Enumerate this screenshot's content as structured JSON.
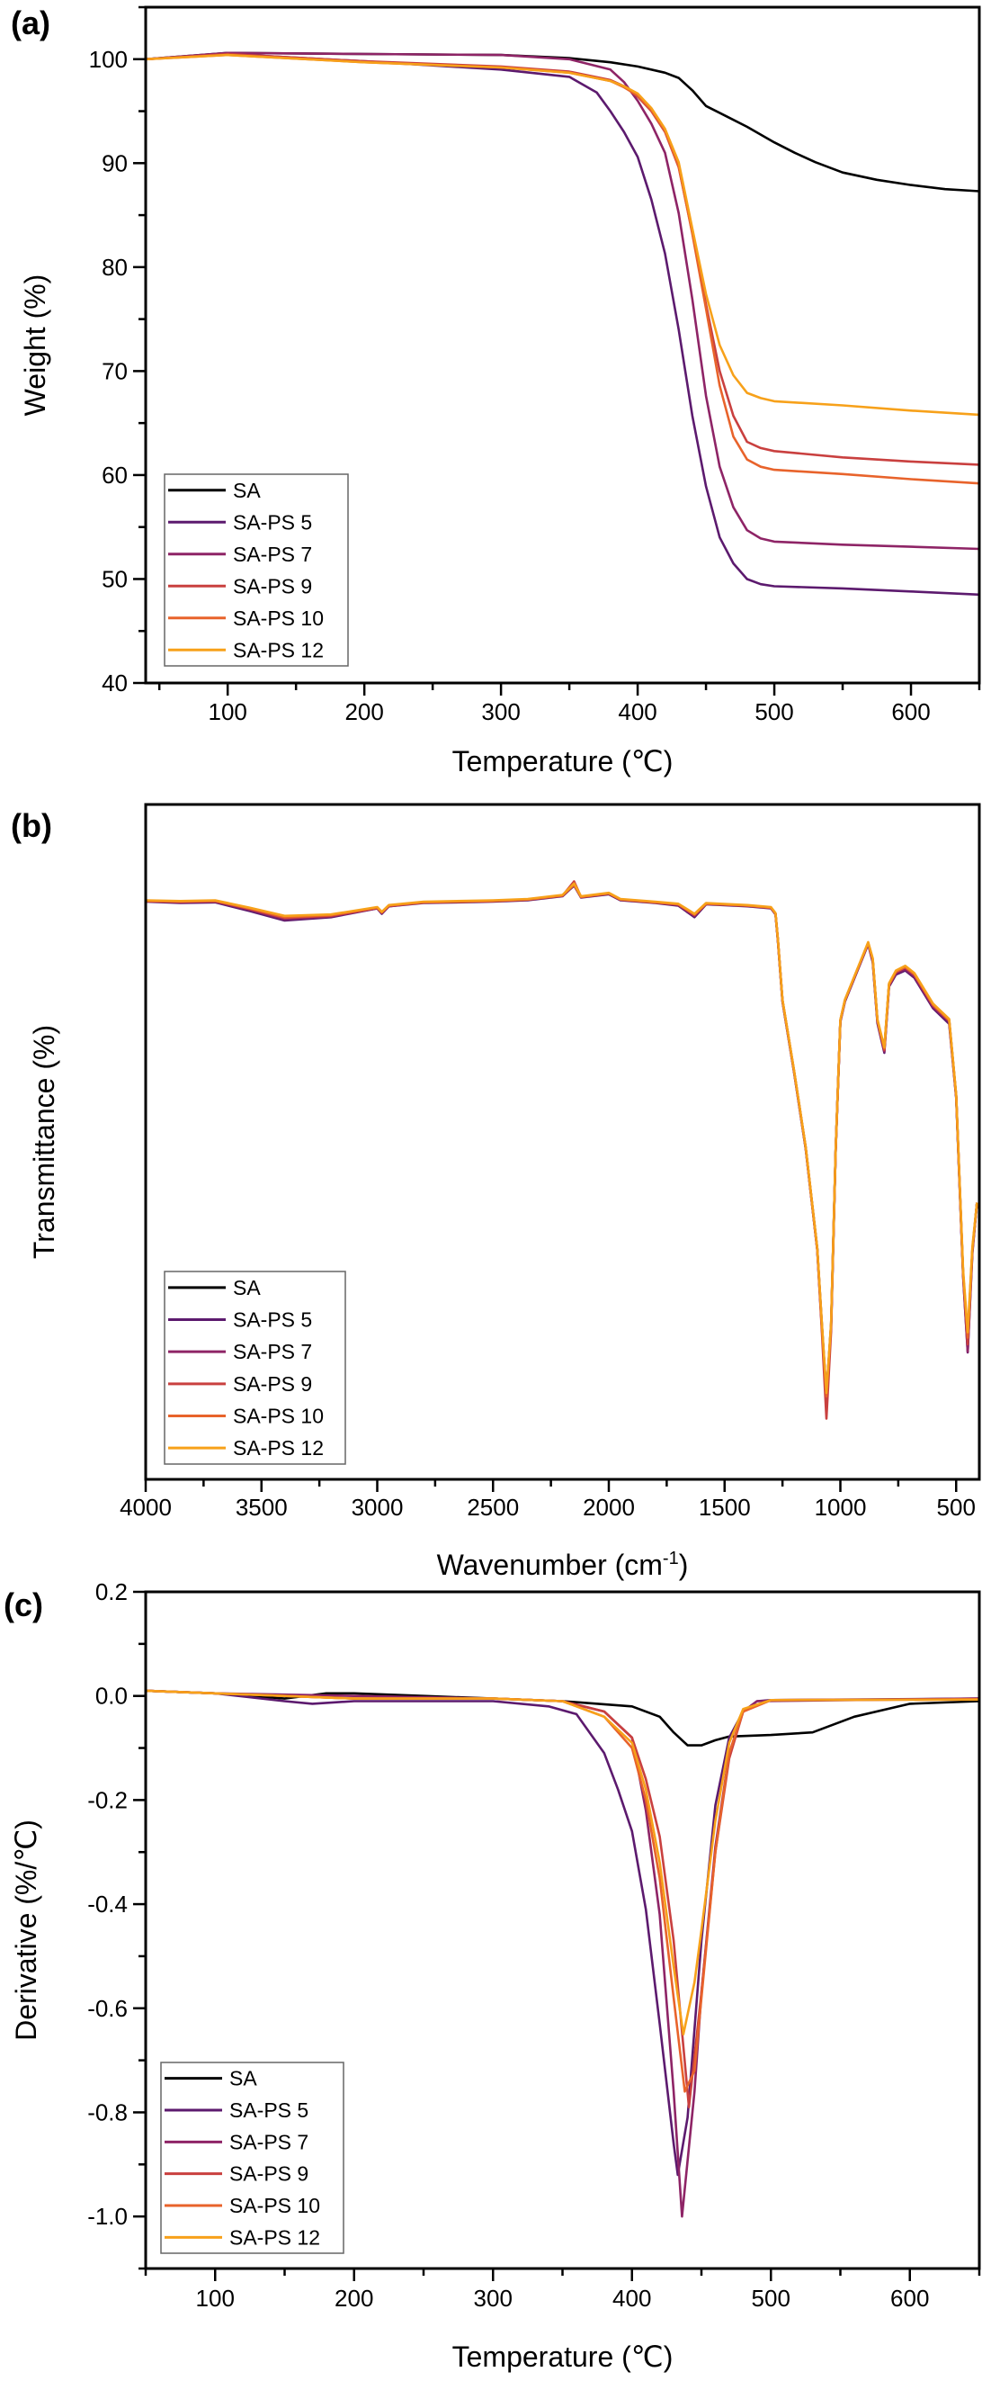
{
  "colors": {
    "SA": "#000000",
    "SA-PS 5": "#5c1a6e",
    "SA-PS 7": "#8e2466",
    "SA-PS 9": "#c9403f",
    "SA-PS 10": "#e8632b",
    "SA-PS 12": "#f7a11a"
  },
  "chart_data": [
    {
      "panel_label": "(a)",
      "type": "line",
      "title": "",
      "xlabel": "Temperature (℃)",
      "ylabel": "Weight (%)",
      "xlim": [
        40,
        650
      ],
      "ylim": [
        40,
        105
      ],
      "xticks": [
        100,
        200,
        300,
        400,
        500,
        600
      ],
      "xminor": 50,
      "yticks": [
        40,
        50,
        60,
        70,
        80,
        90,
        100
      ],
      "yminor": 5,
      "grid": false,
      "legend": "bottom-left",
      "series": [
        {
          "name": "SA",
          "x": [
            40,
            100,
            200,
            300,
            350,
            380,
            400,
            420,
            430,
            440,
            450,
            465,
            480,
            500,
            515,
            530,
            550,
            575,
            600,
            625,
            650
          ],
          "y": [
            100,
            100.6,
            100.5,
            100.4,
            100.1,
            99.7,
            99.3,
            98.7,
            98.2,
            97,
            95.5,
            94.5,
            93.5,
            92,
            91,
            90.1,
            89.1,
            88.4,
            87.9,
            87.5,
            87.3
          ]
        },
        {
          "name": "SA-PS 5",
          "x": [
            40,
            100,
            200,
            300,
            350,
            370,
            380,
            390,
            400,
            410,
            420,
            430,
            440,
            450,
            460,
            470,
            480,
            490,
            500,
            550,
            600,
            650
          ],
          "y": [
            100,
            100.5,
            99.8,
            99,
            98.3,
            96.8,
            95,
            93,
            90.6,
            86.5,
            81.3,
            74,
            65.7,
            58.9,
            54,
            51.5,
            50,
            49.5,
            49.3,
            49.1,
            48.8,
            48.5
          ]
        },
        {
          "name": "SA-PS 7",
          "x": [
            40,
            100,
            200,
            300,
            350,
            380,
            390,
            400,
            410,
            420,
            430,
            440,
            450,
            460,
            470,
            480,
            490,
            500,
            550,
            600,
            650
          ],
          "y": [
            100,
            100.6,
            100.5,
            100.4,
            100,
            99,
            97.8,
            96,
            93.8,
            91,
            85.2,
            76.9,
            67.6,
            60.8,
            56.9,
            54.7,
            53.9,
            53.6,
            53.3,
            53.1,
            52.9
          ]
        },
        {
          "name": "SA-PS 9",
          "x": [
            40,
            100,
            200,
            300,
            350,
            380,
            390,
            400,
            410,
            420,
            430,
            440,
            450,
            460,
            470,
            480,
            490,
            500,
            550,
            600,
            650
          ],
          "y": [
            100,
            100.5,
            99.8,
            99.3,
            98.8,
            98,
            97.4,
            96.4,
            95,
            93,
            89.6,
            83.3,
            76.4,
            70,
            65.7,
            63.2,
            62.6,
            62.3,
            61.7,
            61.3,
            61
          ]
        },
        {
          "name": "SA-PS 10",
          "x": [
            40,
            100,
            200,
            300,
            350,
            380,
            390,
            400,
            410,
            420,
            430,
            440,
            450,
            460,
            470,
            480,
            490,
            500,
            550,
            600,
            650
          ],
          "y": [
            100,
            100.4,
            99.7,
            99.2,
            98.7,
            97.9,
            97.3,
            96.5,
            95.1,
            93.1,
            89.7,
            83.2,
            76,
            68.6,
            63.7,
            61.5,
            60.8,
            60.5,
            60.1,
            59.6,
            59.2
          ]
        },
        {
          "name": "SA-PS 12",
          "x": [
            40,
            100,
            200,
            300,
            350,
            380,
            390,
            400,
            410,
            420,
            430,
            440,
            450,
            460,
            470,
            480,
            490,
            500,
            550,
            600,
            650
          ],
          "y": [
            100,
            100.4,
            99.7,
            99.2,
            98.7,
            97.9,
            97.4,
            96.7,
            95.3,
            93.3,
            90.1,
            83.7,
            77.4,
            72.5,
            69.6,
            67.9,
            67.4,
            67.1,
            66.7,
            66.2,
            65.8
          ]
        }
      ]
    },
    {
      "panel_label": "(b)",
      "type": "line",
      "title": "",
      "xlabel": "Wavenumber (cm",
      "xlabel_sup": "-1",
      "xlabel_end": ")",
      "ylabel": "Transmittance (%)",
      "xlim": [
        4000,
        400
      ],
      "ylim": [
        0,
        100
      ],
      "xticks": [
        4000,
        3500,
        3000,
        2500,
        2000,
        1500,
        1000,
        500
      ],
      "xminor": 250,
      "yticks": [],
      "grid": false,
      "legend": "bottom-left",
      "x": [
        4000,
        3850,
        3700,
        3550,
        3400,
        3200,
        3000,
        2980,
        2950,
        2800,
        2500,
        2350,
        2200,
        2150,
        2120,
        2000,
        1950,
        1800,
        1700,
        1630,
        1580,
        1400,
        1300,
        1280,
        1270,
        1250,
        1200,
        1150,
        1100,
        1080,
        1060,
        1040,
        1020,
        1000,
        980,
        900,
        880,
        860,
        840,
        810,
        790,
        760,
        720,
        680,
        600,
        530,
        500,
        470,
        450,
        430,
        410
      ],
      "series": [
        {
          "name": "SA",
          "y": [
            85.7,
            85.6,
            85.7,
            84.5,
            83.3,
            83.6,
            84.7,
            84.0,
            85.0,
            85.5,
            85.7,
            85.9,
            86.5,
            88.0,
            86.3,
            86.8,
            85.9,
            85.5,
            85.2,
            83.7,
            85.3,
            85.0,
            84.7,
            83.8,
            80.0,
            71,
            60.5,
            49.2,
            34.2,
            23,
            12.5,
            23,
            49,
            68,
            71,
            77.8,
            79.5,
            77,
            68,
            63.8,
            73.3,
            75.2,
            75.9,
            74.8,
            70.3,
            68,
            56.8,
            30.5,
            21,
            34,
            41
          ]
        },
        {
          "name": "SA-PS 5",
          "y": [
            85.6,
            85.4,
            85.5,
            84.2,
            82.8,
            83.3,
            84.6,
            83.8,
            84.9,
            85.4,
            85.6,
            85.8,
            86.4,
            88.0,
            86.2,
            86.7,
            85.8,
            85.4,
            85.0,
            83.3,
            85.2,
            84.9,
            84.6,
            83.7,
            79.8,
            70.8,
            60.3,
            49.0,
            34.0,
            22.5,
            11.5,
            22.5,
            48.8,
            67.8,
            70.8,
            77.6,
            79.3,
            76.6,
            67.6,
            63.2,
            73.0,
            74.8,
            75.4,
            74.3,
            69.8,
            67.5,
            56.5,
            30.0,
            18.8,
            33.5,
            41
          ]
        },
        {
          "name": "SA-PS 7",
          "y": [
            85.7,
            85.5,
            85.6,
            84.4,
            83.0,
            83.4,
            84.6,
            83.9,
            84.9,
            85.5,
            85.7,
            85.9,
            86.5,
            88.2,
            86.3,
            86.8,
            85.9,
            85.5,
            85.1,
            83.5,
            85.3,
            85.0,
            84.7,
            83.8,
            79.9,
            70.9,
            60.4,
            49.1,
            34.1,
            22.6,
            11.8,
            22.8,
            48.9,
            67.9,
            70.9,
            77.7,
            79.4,
            76.8,
            67.8,
            63.4,
            73.1,
            75.0,
            75.6,
            74.5,
            70.0,
            67.8,
            56.6,
            30.2,
            18.9,
            33.8,
            41
          ]
        },
        {
          "name": "SA-PS 9",
          "y": [
            85.7,
            85.6,
            85.7,
            84.5,
            83.2,
            83.5,
            84.7,
            84.0,
            85.0,
            85.5,
            85.7,
            85.9,
            86.5,
            88.6,
            86.3,
            86.8,
            85.9,
            85.5,
            85.2,
            83.6,
            85.3,
            85.0,
            84.7,
            83.8,
            80.0,
            71,
            60.5,
            49.2,
            34.0,
            22.0,
            9.0,
            22.0,
            49,
            68,
            71,
            77.8,
            79.5,
            77,
            68,
            63.6,
            73.3,
            75.2,
            75.9,
            74.8,
            70.3,
            68,
            56.8,
            30.5,
            20,
            34,
            41
          ]
        },
        {
          "name": "SA-PS 10",
          "y": [
            85.7,
            85.6,
            85.7,
            84.6,
            83.3,
            83.6,
            84.7,
            84.0,
            85.0,
            85.5,
            85.7,
            85.9,
            86.5,
            88.1,
            86.3,
            86.8,
            85.9,
            85.5,
            85.2,
            83.7,
            85.3,
            85.0,
            84.7,
            83.8,
            80.0,
            71,
            60.5,
            49.2,
            34.2,
            23,
            12.3,
            23,
            49,
            68,
            71,
            77.8,
            79.5,
            77,
            68,
            63.8,
            73.3,
            75.2,
            75.9,
            74.8,
            70.3,
            68,
            56.8,
            30.5,
            21,
            34,
            41
          ]
        },
        {
          "name": "SA-PS 12",
          "y": [
            85.8,
            85.7,
            85.8,
            84.7,
            83.5,
            83.7,
            84.8,
            84.1,
            85.1,
            85.6,
            85.8,
            86.0,
            86.6,
            88.3,
            86.4,
            86.9,
            86.0,
            85.6,
            85.3,
            83.8,
            85.4,
            85.1,
            84.8,
            83.9,
            80.1,
            71.1,
            60.6,
            49.3,
            34.3,
            23.2,
            12.8,
            23.2,
            49.1,
            68.1,
            71.1,
            77.9,
            79.6,
            77.2,
            68.2,
            64.0,
            73.5,
            75.4,
            76.1,
            75.0,
            70.5,
            68.2,
            57.0,
            31.0,
            21.8,
            34.5,
            41
          ]
        }
      ]
    },
    {
      "panel_label": "(c)",
      "type": "line",
      "title": "",
      "xlabel": "Temperature (℃)",
      "ylabel": "Derivative (%/℃)",
      "xlim": [
        50,
        650
      ],
      "ylim": [
        -1.1,
        0.2
      ],
      "xticks": [
        100,
        200,
        300,
        400,
        500,
        600
      ],
      "xminor": 50,
      "yticks": [
        0.2,
        0.0,
        -0.2,
        -0.4,
        -0.6,
        -0.8,
        -1.0
      ],
      "ytick_labels": [
        "0.2",
        "0.0",
        "-0.2",
        "-0.4",
        "-0.6",
        "-0.8",
        "-1.0"
      ],
      "yminor": 0.1,
      "grid": false,
      "legend": "bottom-left",
      "series": [
        {
          "name": "SA",
          "x": [
            50,
            100,
            150,
            180,
            200,
            250,
            300,
            350,
            400,
            420,
            430,
            440,
            450,
            460,
            470,
            500,
            530,
            560,
            600,
            650
          ],
          "y": [
            0.01,
            0.005,
            -0.005,
            0.005,
            0.005,
            0.0,
            -0.005,
            -0.01,
            -0.02,
            -0.04,
            -0.07,
            -0.095,
            -0.095,
            -0.085,
            -0.078,
            -0.075,
            -0.07,
            -0.04,
            -0.015,
            -0.01
          ]
        },
        {
          "name": "SA-PS 5",
          "x": [
            50,
            100,
            150,
            170,
            200,
            300,
            340,
            360,
            380,
            390,
            400,
            410,
            420,
            430,
            433,
            440,
            450,
            460,
            470,
            480,
            490,
            500,
            650
          ],
          "y": [
            0.01,
            0.005,
            -0.01,
            -0.015,
            -0.01,
            -0.01,
            -0.02,
            -0.035,
            -0.11,
            -0.18,
            -0.26,
            -0.41,
            -0.63,
            -0.86,
            -0.92,
            -0.81,
            -0.47,
            -0.21,
            -0.08,
            -0.03,
            -0.01,
            -0.008,
            -0.005
          ]
        },
        {
          "name": "SA-PS 7",
          "x": [
            50,
            100,
            200,
            300,
            350,
            380,
            400,
            410,
            420,
            430,
            436,
            445,
            450,
            460,
            470,
            480,
            490,
            650
          ],
          "y": [
            0.01,
            0.005,
            0.0,
            -0.005,
            -0.01,
            -0.03,
            -0.08,
            -0.22,
            -0.42,
            -0.76,
            -1.0,
            -0.76,
            -0.57,
            -0.29,
            -0.11,
            -0.03,
            -0.01,
            -0.005
          ]
        },
        {
          "name": "SA-PS 9",
          "x": [
            50,
            100,
            200,
            300,
            350,
            380,
            400,
            410,
            420,
            430,
            441,
            450,
            460,
            470,
            480,
            500,
            650
          ],
          "y": [
            0.01,
            0.005,
            -0.005,
            -0.005,
            -0.01,
            -0.03,
            -0.08,
            -0.16,
            -0.27,
            -0.47,
            -0.79,
            -0.57,
            -0.3,
            -0.12,
            -0.03,
            -0.008,
            -0.006
          ]
        },
        {
          "name": "SA-PS 10",
          "x": [
            50,
            100,
            200,
            300,
            350,
            380,
            400,
            410,
            420,
            430,
            438,
            445,
            450,
            460,
            470,
            480,
            500,
            650
          ],
          "y": [
            0.01,
            0.005,
            -0.005,
            -0.005,
            -0.01,
            -0.04,
            -0.1,
            -0.2,
            -0.35,
            -0.58,
            -0.76,
            -0.72,
            -0.58,
            -0.3,
            -0.11,
            -0.03,
            -0.008,
            -0.007
          ]
        },
        {
          "name": "SA-PS 12",
          "x": [
            50,
            100,
            200,
            300,
            350,
            380,
            400,
            410,
            420,
            430,
            437,
            445,
            450,
            460,
            470,
            480,
            500,
            650
          ],
          "y": [
            0.01,
            0.005,
            -0.005,
            -0.005,
            -0.01,
            -0.04,
            -0.09,
            -0.18,
            -0.32,
            -0.52,
            -0.65,
            -0.55,
            -0.45,
            -0.24,
            -0.09,
            -0.025,
            -0.008,
            -0.007
          ]
        }
      ]
    }
  ]
}
